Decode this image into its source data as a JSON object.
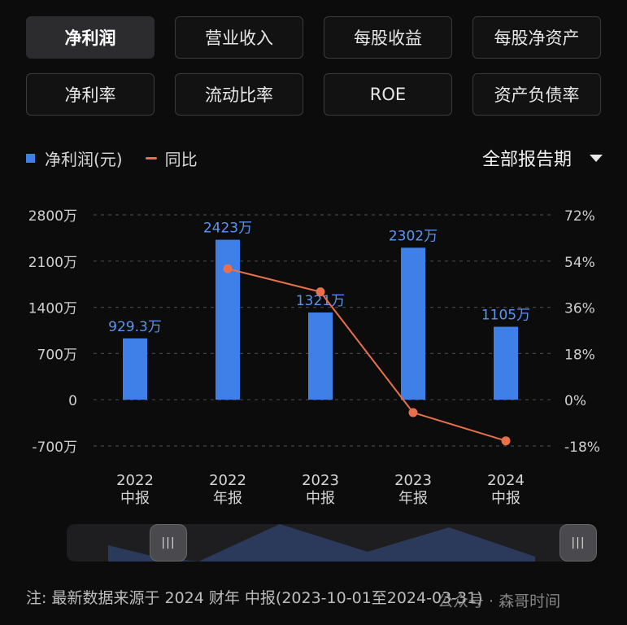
{
  "tabs": [
    {
      "label": "净利润",
      "active": true
    },
    {
      "label": "营业收入",
      "active": false
    },
    {
      "label": "每股收益",
      "active": false
    },
    {
      "label": "每股净资产",
      "active": false
    },
    {
      "label": "净利率",
      "active": false
    },
    {
      "label": "流动比率",
      "active": false
    },
    {
      "label": "ROE",
      "active": false
    },
    {
      "label": "资产负债率",
      "active": false
    }
  ],
  "legend": {
    "bar_label": "净利润(元)",
    "line_label": "同比"
  },
  "period_selector": "全部报告期",
  "chart_data": {
    "type": "bar",
    "categories": [
      [
        "2022",
        "中报"
      ],
      [
        "2022",
        "年报"
      ],
      [
        "2023",
        "中报"
      ],
      [
        "2023",
        "年报"
      ],
      [
        "2024",
        "中报"
      ]
    ],
    "series": [
      {
        "name": "净利润(元)",
        "type": "bar",
        "values": [
          929.3,
          2423,
          1321,
          2302,
          1105
        ],
        "labels": [
          "929.3万",
          "2423万",
          "1321万",
          "2302万",
          "1105万"
        ],
        "color": "#3f7fe8"
      },
      {
        "name": "同比",
        "type": "line",
        "axis": "right",
        "values": [
          null,
          51,
          42,
          -5,
          -16
        ],
        "color": "#e8704a"
      }
    ],
    "y_left": {
      "ticks": [
        2800,
        2100,
        1400,
        700,
        0,
        -700
      ],
      "tick_labels": [
        "2800万",
        "2100万",
        "1400万",
        "700万",
        "0",
        "-700万"
      ],
      "ylim": [
        -700,
        2800
      ]
    },
    "y_right": {
      "ticks": [
        72,
        54,
        36,
        18,
        0,
        -18
      ],
      "tick_labels": [
        "72%",
        "54%",
        "36%",
        "18%",
        "0%",
        "-18%"
      ],
      "ylim": [
        -18,
        72
      ]
    },
    "grid": "dashed-horizontal"
  },
  "note": "注: 最新数据来源于 2024 财年 中报(2023-10-01至2024-03-31)",
  "watermark": "公众号 · 森哥时间",
  "slider": {
    "left_handle": "|||",
    "right_handle": "|||"
  }
}
